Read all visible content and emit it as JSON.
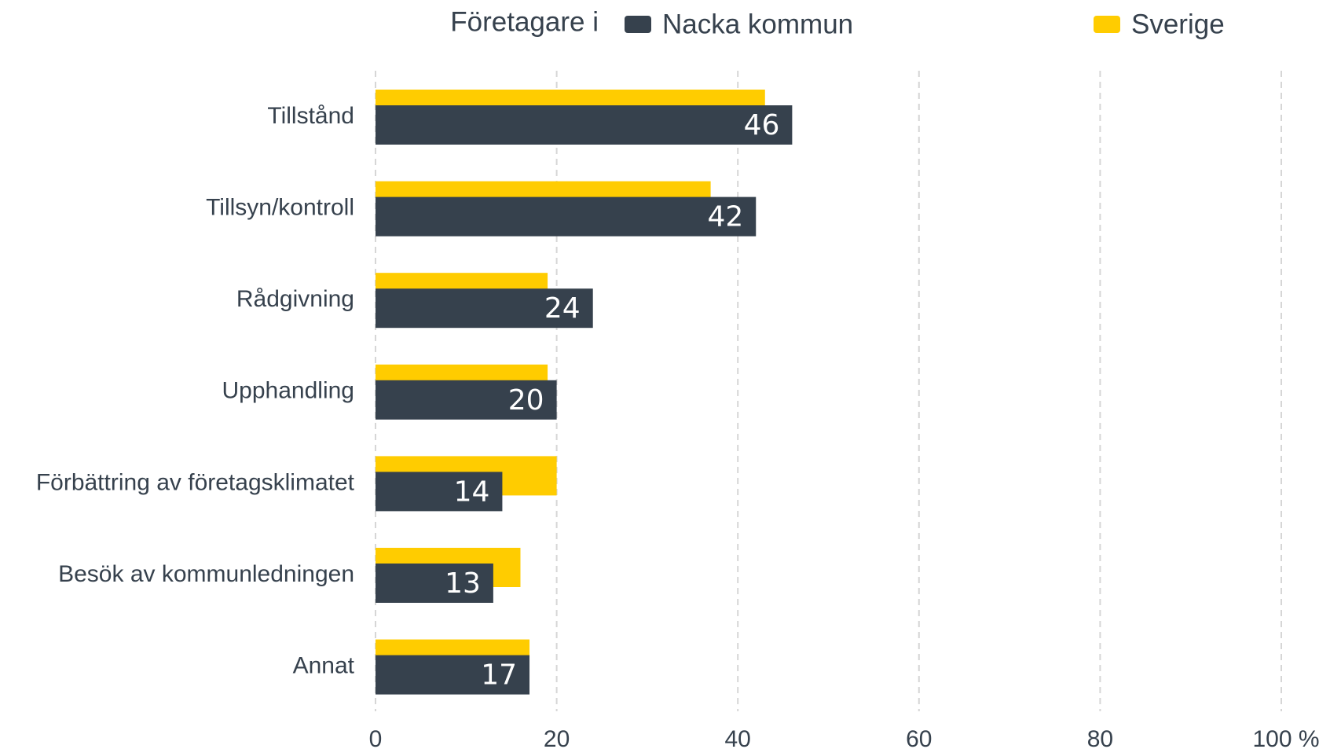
{
  "chart_data": {
    "type": "bar",
    "orientation": "horizontal",
    "legend_title": "Företagare i",
    "categories": [
      "Tillstånd",
      "Tillsyn/kontroll",
      "Rådgivning",
      "Upphandling",
      "Förbättring av företagsklimatet",
      "Besök av kommunledningen",
      "Annat"
    ],
    "series": [
      {
        "name": "Nacka kommun",
        "color": "#36414d",
        "values": [
          46,
          42,
          24,
          20,
          14,
          13,
          17
        ]
      },
      {
        "name": "Sverige",
        "color": "#ffcc00",
        "values": [
          43,
          37,
          19,
          19,
          20,
          16,
          17
        ]
      }
    ],
    "xlim": [
      0,
      100
    ],
    "xticks": [
      0,
      20,
      40,
      60,
      80,
      {
        "value": 100,
        "label": "100 %"
      }
    ],
    "grid": true
  }
}
